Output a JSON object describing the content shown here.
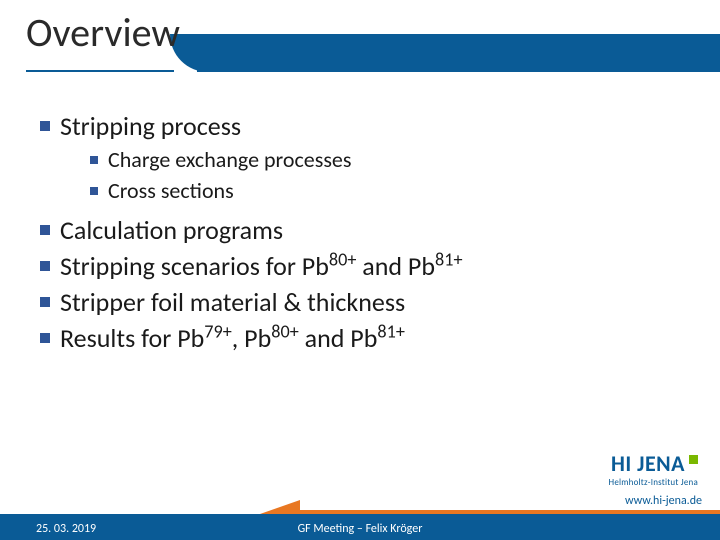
{
  "colors": {
    "brand_blue": "#0a5b96",
    "accent_orange": "#e87722",
    "accent_green": "#7ab800",
    "bullet_blue": "#2f5597",
    "text": "#1a1a1a",
    "bg": "#ffffff"
  },
  "title": "Overview",
  "bullets": [
    {
      "level": 1,
      "text": "Stripping process"
    },
    {
      "level": 2,
      "text": "Charge exchange processes"
    },
    {
      "level": 2,
      "text": "Cross sections"
    },
    {
      "level": 1,
      "html": "Calculation programs"
    },
    {
      "level": 1,
      "html": "Stripping scenarios for  Pb<sup>80+</sup> and Pb<sup>81+</sup>"
    },
    {
      "level": 1,
      "html": "Stripper foil material & thickness"
    },
    {
      "level": 1,
      "html": "Results for Pb<sup>79+</sup>, Pb<sup>80+</sup> and Pb<sup>81+</sup>"
    }
  ],
  "logo": {
    "main": "HI JENA",
    "sub": "Helmholtz-Institut Jena"
  },
  "footer": {
    "date": "25. 03. 2019",
    "center": "GF Meeting – Felix Kröger",
    "url": "www.hi-jena.de"
  }
}
